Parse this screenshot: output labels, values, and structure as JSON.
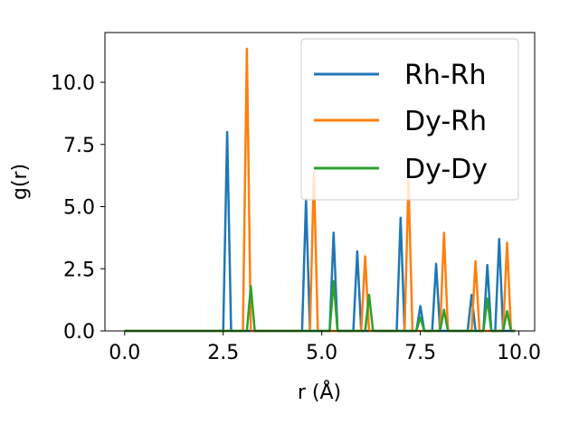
{
  "chart_data": {
    "type": "line",
    "xlabel": "r (Å)",
    "ylabel": "g(r)",
    "xlim": [
      -0.5,
      10.4
    ],
    "ylim": [
      0.0,
      12.0
    ],
    "x_ticks": [
      0.0,
      2.5,
      5.0,
      7.5,
      10.0
    ],
    "x_tick_labels": [
      "0.0",
      "2.5",
      "5.0",
      "7.5",
      "10.0"
    ],
    "y_ticks": [
      0.0,
      2.5,
      5.0,
      7.5,
      10.0
    ],
    "y_tick_labels": [
      "0.0",
      "2.5",
      "5.0",
      "7.5",
      "10.0"
    ],
    "grid": false,
    "legend_position": "top-right",
    "series": [
      {
        "name": "Rh-Rh",
        "color": "#1f77b4",
        "peaks": [
          [
            2.6,
            8.0
          ],
          [
            4.6,
            5.3
          ],
          [
            5.3,
            3.95
          ],
          [
            5.9,
            3.2
          ],
          [
            7.0,
            4.55
          ],
          [
            7.5,
            1.0
          ],
          [
            7.9,
            2.7
          ],
          [
            8.8,
            1.45
          ],
          [
            9.2,
            2.65
          ],
          [
            9.5,
            3.7
          ]
        ]
      },
      {
        "name": "Dy-Rh",
        "color": "#ff7f0e",
        "peaks": [
          [
            3.1,
            11.35
          ],
          [
            4.8,
            6.4
          ],
          [
            6.1,
            3.0
          ],
          [
            7.2,
            6.05
          ],
          [
            8.1,
            3.95
          ],
          [
            8.9,
            2.8
          ],
          [
            9.7,
            3.55
          ]
        ]
      },
      {
        "name": "Dy-Dy",
        "color": "#2ca02c",
        "peaks": [
          [
            3.2,
            1.8
          ],
          [
            5.3,
            2.0
          ],
          [
            6.2,
            1.45
          ],
          [
            7.5,
            0.55
          ],
          [
            8.1,
            0.85
          ],
          [
            9.2,
            1.3
          ],
          [
            9.7,
            0.8
          ]
        ]
      }
    ]
  }
}
